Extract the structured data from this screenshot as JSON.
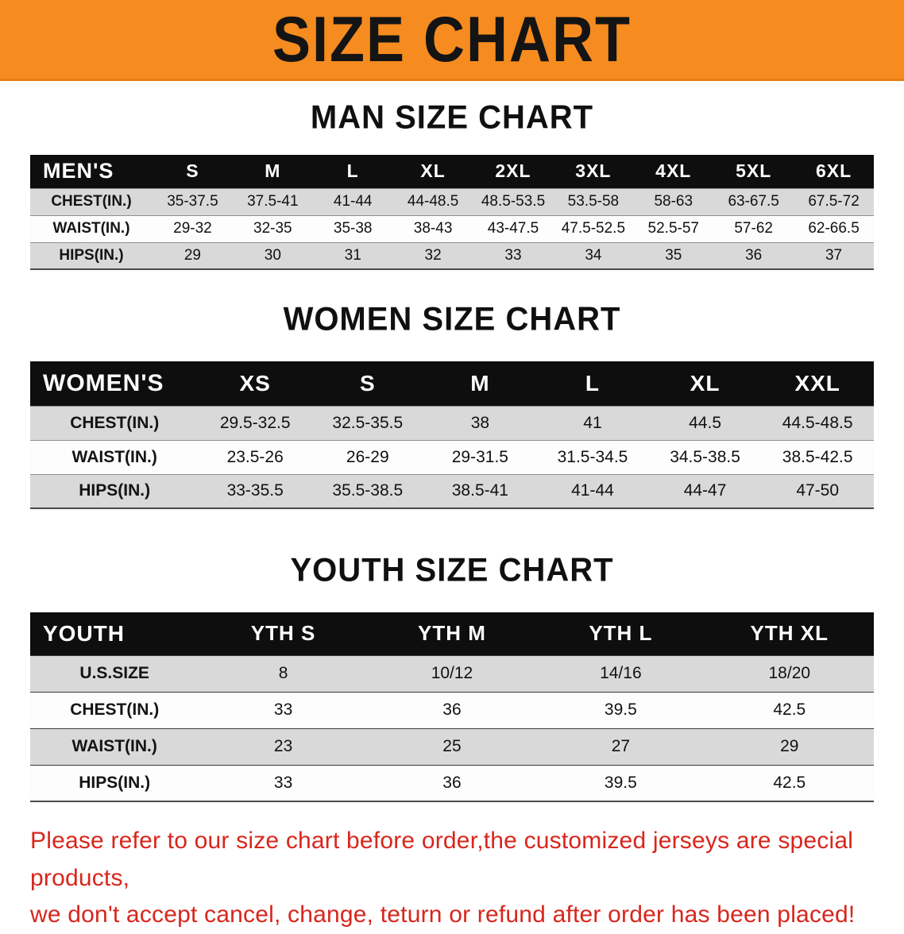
{
  "banner": {
    "title": "SIZE CHART",
    "bg_color": "#f68b1f",
    "text_color": "#141414"
  },
  "sections": [
    {
      "heading": "MAN SIZE CHART",
      "table_name": "men",
      "header": [
        "MEN'S",
        "S",
        "M",
        "L",
        "XL",
        "2XL",
        "3XL",
        "4XL",
        "5XL",
        "6XL"
      ],
      "rows": [
        {
          "label": "CHEST(IN.)",
          "values": [
            "35-37.5",
            "37.5-41",
            "41-44",
            "44-48.5",
            "48.5-53.5",
            "53.5-58",
            "58-63",
            "63-67.5",
            "67.5-72"
          ]
        },
        {
          "label": "WAIST(IN.)",
          "values": [
            "29-32",
            "32-35",
            "35-38",
            "38-43",
            "43-47.5",
            "47.5-52.5",
            "52.5-57",
            "57-62",
            "62-66.5"
          ]
        },
        {
          "label": "HIPS(IN.)",
          "values": [
            "29",
            "30",
            "31",
            "32",
            "33",
            "34",
            "35",
            "36",
            "37"
          ]
        }
      ]
    },
    {
      "heading": "WOMEN SIZE CHART",
      "table_name": "women",
      "header": [
        "WOMEN'S",
        "XS",
        "S",
        "M",
        "L",
        "XL",
        "XXL"
      ],
      "rows": [
        {
          "label": "CHEST(IN.)",
          "values": [
            "29.5-32.5",
            "32.5-35.5",
            "38",
            "41",
            "44.5",
            "44.5-48.5"
          ]
        },
        {
          "label": "WAIST(IN.)",
          "values": [
            "23.5-26",
            "26-29",
            "29-31.5",
            "31.5-34.5",
            "34.5-38.5",
            "38.5-42.5"
          ]
        },
        {
          "label": "HIPS(IN.)",
          "values": [
            "33-35.5",
            "35.5-38.5",
            "38.5-41",
            "41-44",
            "44-47",
            "47-50"
          ]
        }
      ]
    },
    {
      "heading": "YOUTH SIZE CHART",
      "table_name": "youth",
      "header": [
        "YOUTH",
        "YTH S",
        "YTH M",
        "YTH L",
        "YTH XL"
      ],
      "rows": [
        {
          "label": "U.S.SIZE",
          "values": [
            "8",
            "10/12",
            "14/16",
            "18/20"
          ]
        },
        {
          "label": "CHEST(IN.)",
          "values": [
            "33",
            "36",
            "39.5",
            "42.5"
          ]
        },
        {
          "label": "WAIST(IN.)",
          "values": [
            "23",
            "25",
            "27",
            "29"
          ]
        },
        {
          "label": "HIPS(IN.)",
          "values": [
            "33",
            "36",
            "39.5",
            "42.5"
          ]
        }
      ]
    }
  ],
  "footer": {
    "line1": "Please refer to our size chart before order,the customized jerseys are special products,",
    "line2": "we don't accept cancel, change, teturn or refund after order has been placed!",
    "text_color": "#d8261c"
  }
}
